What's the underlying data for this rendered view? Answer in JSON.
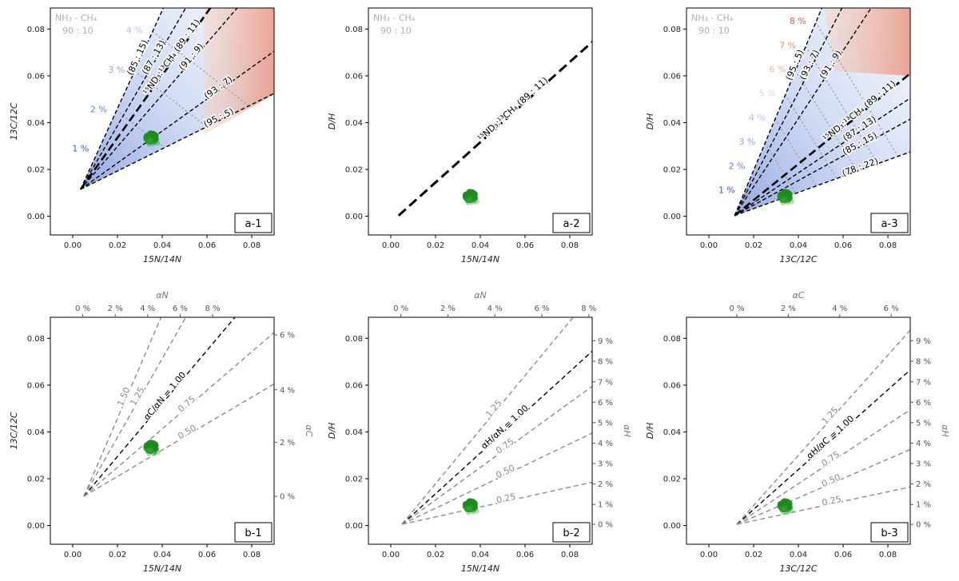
{
  "figure": {
    "description_free": true
  },
  "chart_data": [
    {
      "id": "a-1",
      "type": "line",
      "panel_label": "a-1",
      "xlabel": "$^{15}N/^{14}N$",
      "xlabel_text": "15N/14N",
      "ylabel_text": "13C/12C",
      "xlim": [
        -0.01,
        0.09
      ],
      "ylim": [
        -0.008,
        0.089
      ],
      "xticks": [
        "0.00",
        "0.02",
        "0.04",
        "0.06",
        "0.08"
      ],
      "xtick_values": [
        0,
        0.02,
        0.04,
        0.06,
        0.08
      ],
      "yticks": [
        "0.00",
        "0.02",
        "0.04",
        "0.06",
        "0.08"
      ],
      "ytick_values": [
        0,
        0.02,
        0.04,
        0.06,
        0.08
      ],
      "legend_title": "NH₃ - CH₄",
      "legend_ratio": "90 : 10",
      "origin": [
        0.0035,
        0.0115
      ],
      "ratio_lines": [
        {
          "label": "(85 : 15)",
          "end": [
            0.0405,
            0.089
          ]
        },
        {
          "label": "(87 : 13)",
          "end": [
            0.0505,
            0.089
          ]
        },
        {
          "label": "¹⁵ND₃:¹³CH₄ (89 : 11)",
          "end": [
            0.0615,
            0.089
          ],
          "bold": true
        },
        {
          "label": "(91 : 9)",
          "end": [
            0.0735,
            0.089
          ]
        },
        {
          "label": "(93 : 7)",
          "end": [
            0.09,
            0.0705
          ]
        },
        {
          "label": "(95 : 5)",
          "end": [
            0.09,
            0.0525
          ]
        }
      ],
      "percent_labels": [
        "1 %",
        "2 %",
        "3 %",
        "4 %"
      ],
      "percent_colors": [
        "#3b5fc4",
        "#5f86d6",
        "#8aa9e3",
        "#b0c6ee"
      ],
      "sample_center": [
        0.035,
        0.0335
      ]
    },
    {
      "id": "a-2",
      "type": "line",
      "panel_label": "a-2",
      "xlabel_text": "15N/14N",
      "ylabel_text": "D/H",
      "xlim": [
        -0.01,
        0.09
      ],
      "ylim": [
        -0.008,
        0.089
      ],
      "xticks": [
        "0.00",
        "0.02",
        "0.04",
        "0.06",
        "0.08"
      ],
      "xtick_values": [
        0,
        0.02,
        0.04,
        0.06,
        0.08
      ],
      "yticks": [
        "0.00",
        "0.02",
        "0.04",
        "0.06",
        "0.08"
      ],
      "ytick_values": [
        0,
        0.02,
        0.04,
        0.06,
        0.08
      ],
      "legend_title": "NH₃ - CH₄",
      "legend_ratio": "90 : 10",
      "line": {
        "start": [
          0.0035,
          0.0003
        ],
        "end": [
          0.09,
          0.0745
        ],
        "label": "¹⁵ND₃:¹³CH₄ (89 : 11)"
      },
      "sample_center": [
        0.0355,
        0.0085
      ]
    },
    {
      "id": "a-3",
      "type": "line",
      "panel_label": "a-3",
      "xlabel_text": "13C/12C",
      "ylabel_text": "D/H",
      "xlim": [
        -0.01,
        0.09
      ],
      "ylim": [
        -0.008,
        0.089
      ],
      "xticks": [
        "0.00",
        "0.02",
        "0.04",
        "0.06",
        "0.08"
      ],
      "xtick_values": [
        0,
        0.02,
        0.04,
        0.06,
        0.08
      ],
      "yticks": [
        "0.00",
        "0.02",
        "0.04",
        "0.06",
        "0.08"
      ],
      "ytick_values": [
        0,
        0.02,
        0.04,
        0.06,
        0.08
      ],
      "legend_title": "NH₃ - CH₄",
      "legend_ratio": "90 : 10",
      "origin": [
        0.0115,
        0.0003
      ],
      "ratio_lines": [
        {
          "label": "(95 : 5)",
          "end": [
            0.0505,
            0.089
          ]
        },
        {
          "label": "(93 : 7)",
          "end": [
            0.0595,
            0.089
          ]
        },
        {
          "label": "(91 : 9)",
          "end": [
            0.0725,
            0.089
          ]
        },
        {
          "label": "¹⁵ND₃:¹³CH₄ (89 : 11)",
          "end": [
            0.09,
            0.061
          ],
          "bold": true
        },
        {
          "label": "(87 : 13)",
          "end": [
            0.09,
            0.0505
          ]
        },
        {
          "label": "(85 : 15)",
          "end": [
            0.09,
            0.0415
          ]
        },
        {
          "label": "(78 : 22)",
          "end": [
            0.09,
            0.0275
          ]
        }
      ],
      "percent_labels": [
        "1 %",
        "2 %",
        "3 %",
        "4 %",
        "5 %",
        "6 %",
        "7 %",
        "8 %"
      ],
      "percent_colors": [
        "#3b5fc4",
        "#5f86d6",
        "#8aa9e3",
        "#b0c6ee",
        "#d0d8e8",
        "#f0b69f",
        "#e58a6f",
        "#d9624a"
      ],
      "sample_center": [
        0.034,
        0.0085
      ]
    },
    {
      "id": "b-1",
      "type": "line",
      "panel_label": "b-1",
      "xlabel_text": "15N/14N",
      "ylabel_text": "13C/12C",
      "xlim": [
        -0.01,
        0.09
      ],
      "ylim": [
        -0.008,
        0.089
      ],
      "xticks": [
        "0.00",
        "0.02",
        "0.04",
        "0.06",
        "0.08"
      ],
      "xtick_values": [
        0,
        0.02,
        0.04,
        0.06,
        0.08
      ],
      "yticks": [
        "0.00",
        "0.02",
        "0.04",
        "0.06",
        "0.08"
      ],
      "ytick_values": [
        0,
        0.02,
        0.04,
        0.06,
        0.08
      ],
      "top_axis_label": "αN",
      "top_ticks": [
        "0 %",
        "2 %",
        "4 %",
        "6 %",
        "8 %"
      ],
      "top_tick_values": [
        0.0045,
        0.019,
        0.0335,
        0.048,
        0.0625
      ],
      "right_axis_label": "αC",
      "right_ticks": [
        "0 %",
        "2 %",
        "4 %",
        "6 %"
      ],
      "right_tick_values": [
        0.0125,
        0.0355,
        0.058,
        0.0815
      ],
      "origin": [
        0.005,
        0.0125
      ],
      "ratio_lines": [
        {
          "label": "1.50",
          "end": [
            0.0395,
            0.089
          ],
          "color": "#8c8c8c"
        },
        {
          "label": "1.25",
          "end": [
            0.0505,
            0.089
          ],
          "color": "#8c8c8c"
        },
        {
          "label": "αC/αN = 1.00",
          "end": [
            0.0725,
            0.089
          ],
          "color": "#000000"
        },
        {
          "label": "0.75",
          "end": [
            0.09,
            0.0825
          ],
          "color": "#8c8c8c"
        },
        {
          "label": "0.50",
          "end": [
            0.09,
            0.0605
          ],
          "color": "#8c8c8c"
        }
      ],
      "sample_center": [
        0.035,
        0.0335
      ]
    },
    {
      "id": "b-2",
      "type": "line",
      "panel_label": "b-2",
      "xlabel_text": "15N/14N",
      "ylabel_text": "D/H",
      "xlim": [
        -0.01,
        0.09
      ],
      "ylim": [
        -0.008,
        0.089
      ],
      "xticks": [
        "0.00",
        "0.02",
        "0.04",
        "0.06",
        "0.08"
      ],
      "xtick_values": [
        0,
        0.02,
        0.04,
        0.06,
        0.08
      ],
      "yticks": [
        "0.00",
        "0.02",
        "0.04",
        "0.06",
        "0.08"
      ],
      "ytick_values": [
        0,
        0.02,
        0.04,
        0.06,
        0.08
      ],
      "top_axis_label": "αN",
      "top_ticks": [
        "0 %",
        "2 %",
        "4 %",
        "6 %",
        "8 %"
      ],
      "top_tick_values": [
        0.0045,
        0.0255,
        0.0465,
        0.0675,
        0.0885
      ],
      "right_axis_label": "αH",
      "right_ticks": [
        "0 %",
        "1 %",
        "2 %",
        "3 %",
        "4 %",
        "5 %",
        "6 %",
        "7 %",
        "8 %",
        "9 %"
      ],
      "right_tick_values": [
        0.0005,
        0.009,
        0.0178,
        0.0265,
        0.0352,
        0.044,
        0.0527,
        0.0614,
        0.0702,
        0.079
      ],
      "origin": [
        0.005,
        0.0005
      ],
      "ratio_lines": [
        {
          "label": "1.25",
          "end": [
            0.0815,
            0.089
          ],
          "color": "#8c8c8c"
        },
        {
          "label": "αH/αN = 1.00",
          "end": [
            0.09,
            0.0745
          ],
          "color": "#000000"
        },
        {
          "label": "0.75",
          "end": [
            0.09,
            0.0595
          ],
          "color": "#8c8c8c"
        },
        {
          "label": "0.50",
          "end": [
            0.09,
            0.0395
          ],
          "color": "#8c8c8c"
        },
        {
          "label": "0.25",
          "end": [
            0.09,
            0.0185
          ],
          "color": "#8c8c8c"
        }
      ],
      "sample_center": [
        0.0355,
        0.0085
      ]
    },
    {
      "id": "b-3",
      "type": "line",
      "panel_label": "b-3",
      "xlabel_text": "13C/12C",
      "ylabel_text": "D/H",
      "xlim": [
        -0.01,
        0.09
      ],
      "ylim": [
        -0.008,
        0.089
      ],
      "xticks": [
        "0.00",
        "0.02",
        "0.04",
        "0.06",
        "0.08"
      ],
      "xtick_values": [
        0,
        0.02,
        0.04,
        0.06,
        0.08
      ],
      "yticks": [
        "0.00",
        "0.02",
        "0.04",
        "0.06",
        "0.08"
      ],
      "ytick_values": [
        0,
        0.02,
        0.04,
        0.06,
        0.08
      ],
      "top_axis_label": "αC",
      "top_ticks": [
        "0 %",
        "2 %",
        "4 %",
        "6 %"
      ],
      "top_tick_values": [
        0.0125,
        0.0355,
        0.0585,
        0.0815
      ],
      "right_axis_label": "αH",
      "right_ticks": [
        "0 %",
        "1 %",
        "2 %",
        "3 %",
        "4 %",
        "5 %",
        "6 %",
        "7 %",
        "8 %",
        "9 %"
      ],
      "right_tick_values": [
        0.0005,
        0.009,
        0.0178,
        0.0265,
        0.0352,
        0.044,
        0.0527,
        0.0614,
        0.0702,
        0.079
      ],
      "origin": [
        0.0125,
        0.0005
      ],
      "ratio_lines": [
        {
          "label": "1.25",
          "end": [
            0.09,
            0.0835
          ],
          "color": "#8c8c8c"
        },
        {
          "label": "αH/αC = 1.00",
          "end": [
            0.09,
            0.0665
          ],
          "color": "#000000"
        },
        {
          "label": "0.75",
          "end": [
            0.09,
            0.0495
          ],
          "color": "#8c8c8c"
        },
        {
          "label": "0.50",
          "end": [
            0.09,
            0.0325
          ],
          "color": "#8c8c8c"
        },
        {
          "label": "0.25",
          "end": [
            0.09,
            0.0165
          ],
          "color": "#8c8c8c"
        }
      ],
      "sample_center": [
        0.034,
        0.0085
      ]
    }
  ]
}
